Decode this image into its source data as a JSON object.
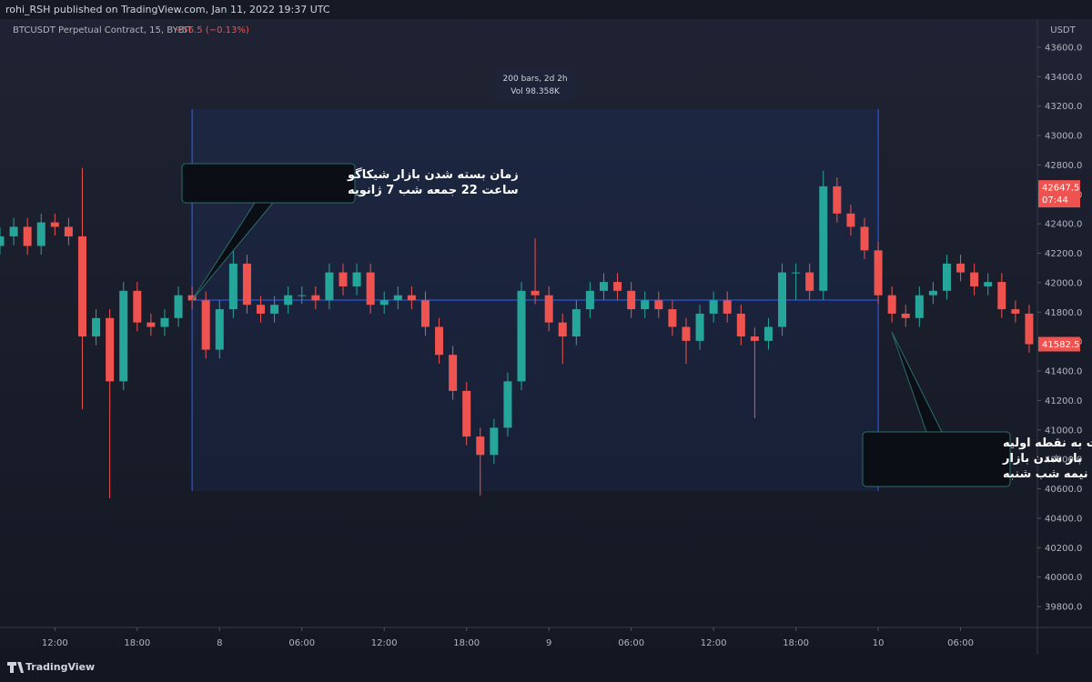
{
  "header": {
    "published": "rohi_RSH published on TradingView.com, Jan 11, 2022 19:37 UTC",
    "symbol": "BTCUSDT Perpetual Contract, 15, BYBIT",
    "change": "−56.5 (−0.13%)",
    "currency": "USDT",
    "brand": "TradingView"
  },
  "chart_data": {
    "type": "candlestick",
    "up_color": "#26a69a",
    "down_color": "#ef5350",
    "x": [
      -4,
      -3,
      -2,
      -1,
      0,
      1,
      2,
      3,
      4,
      5,
      6,
      7,
      8,
      9,
      10,
      11,
      12,
      13,
      14,
      15,
      16,
      17,
      18,
      19,
      20,
      21,
      22,
      23,
      24,
      25,
      26,
      27,
      28,
      29,
      30,
      31,
      32,
      33,
      34,
      35,
      36,
      37,
      38,
      39,
      40,
      41,
      42,
      43,
      44,
      45,
      46,
      47,
      48,
      49,
      50,
      51,
      52,
      53,
      54,
      55,
      56,
      57,
      58,
      59,
      60,
      61,
      62,
      63,
      64,
      65,
      66,
      67,
      68,
      69,
      70,
      71
    ],
    "candles": [
      [
        42250,
        42375,
        42190,
        42315
      ],
      [
        42315,
        42440,
        42255,
        42380
      ],
      [
        42380,
        42440,
        42190,
        42250
      ],
      [
        42250,
        42470,
        42190,
        42410
      ],
      [
        42410,
        42470,
        42320,
        42380
      ],
      [
        42380,
        42440,
        42255,
        42315
      ],
      [
        42315,
        42780,
        41140,
        41635
      ],
      [
        41635,
        41820,
        41575,
        41760
      ],
      [
        41760,
        41820,
        40535,
        41330
      ],
      [
        41330,
        42005,
        41270,
        41945
      ],
      [
        41945,
        42005,
        41670,
        41730
      ],
      [
        41730,
        41790,
        41640,
        41700
      ],
      [
        41700,
        41820,
        41640,
        41760
      ],
      [
        41760,
        41975,
        41700,
        41915
      ],
      [
        41915,
        41975,
        41820,
        41880
      ],
      [
        41880,
        41940,
        41485,
        41545
      ],
      [
        41545,
        41880,
        41485,
        41820
      ],
      [
        41820,
        42240,
        41760,
        42130
      ],
      [
        42130,
        42190,
        41790,
        41850
      ],
      [
        41850,
        41910,
        41730,
        41790
      ],
      [
        41790,
        41910,
        41730,
        41850
      ],
      [
        41850,
        41975,
        41790,
        41915
      ],
      [
        41915,
        41975,
        41855,
        41915
      ],
      [
        41915,
        41975,
        41820,
        41880
      ],
      [
        41880,
        42130,
        41820,
        42070
      ],
      [
        42070,
        42130,
        41915,
        41975
      ],
      [
        41975,
        42130,
        41915,
        42070
      ],
      [
        42070,
        42130,
        41790,
        41850
      ],
      [
        41850,
        41940,
        41790,
        41880
      ],
      [
        41880,
        41975,
        41820,
        41915
      ],
      [
        41915,
        41975,
        41820,
        41880
      ],
      [
        41880,
        41940,
        41640,
        41700
      ],
      [
        41700,
        41760,
        41450,
        41510
      ],
      [
        41510,
        41570,
        41205,
        41265
      ],
      [
        41265,
        41325,
        40895,
        40955
      ],
      [
        40955,
        41015,
        40555,
        40830
      ],
      [
        40830,
        41075,
        40770,
        41015
      ],
      [
        41015,
        41390,
        40955,
        41330
      ],
      [
        41330,
        42005,
        41270,
        41945
      ],
      [
        41945,
        42300,
        41855,
        41915
      ],
      [
        41915,
        41975,
        41670,
        41730
      ],
      [
        41730,
        41790,
        41450,
        41635
      ],
      [
        41635,
        41880,
        41575,
        41820
      ],
      [
        41820,
        42005,
        41760,
        41945
      ],
      [
        41945,
        42065,
        41885,
        42005
      ],
      [
        42005,
        42065,
        41885,
        41945
      ],
      [
        41945,
        42005,
        41760,
        41820
      ],
      [
        41820,
        41940,
        41760,
        41880
      ],
      [
        41880,
        41940,
        41760,
        41820
      ],
      [
        41820,
        41880,
        41640,
        41700
      ],
      [
        41700,
        41760,
        41450,
        41605
      ],
      [
        41605,
        41850,
        41545,
        41790
      ],
      [
        41790,
        41940,
        41730,
        41880
      ],
      [
        41880,
        41940,
        41730,
        41790
      ],
      [
        41790,
        41850,
        41575,
        41635
      ],
      [
        41635,
        41695,
        41080,
        41605
      ],
      [
        41605,
        41760,
        41545,
        41700
      ],
      [
        41700,
        42130,
        41640,
        42070
      ],
      [
        42070,
        42130,
        41885,
        42070
      ],
      [
        42070,
        42130,
        41885,
        41945
      ],
      [
        41945,
        42760,
        41885,
        42655
      ],
      [
        42655,
        42715,
        42410,
        42470
      ],
      [
        42470,
        42530,
        42320,
        42380
      ],
      [
        42380,
        42440,
        42160,
        42220
      ],
      [
        42220,
        42280,
        41855,
        41915
      ],
      [
        41915,
        41975,
        41730,
        41790
      ],
      [
        41790,
        41850,
        41700,
        41760
      ],
      [
        41760,
        41975,
        41700,
        41915
      ],
      [
        41915,
        42005,
        41855,
        41945
      ],
      [
        41945,
        42190,
        41885,
        42130
      ],
      [
        42130,
        42190,
        42010,
        42070
      ],
      [
        42070,
        42130,
        41915,
        41975
      ],
      [
        41975,
        42065,
        41915,
        42005
      ],
      [
        42005,
        42065,
        41760,
        41820
      ],
      [
        41820,
        41880,
        41730,
        41790
      ],
      [
        41790,
        41850,
        41525,
        41582.5
      ]
    ],
    "xlim": [
      -4,
      71.6
    ],
    "ylim": [
      39658,
      43785
    ],
    "xticks": [
      {
        "value": 0,
        "label": "12:00"
      },
      {
        "value": 6,
        "label": "18:00"
      },
      {
        "value": 12,
        "label": "8"
      },
      {
        "value": 18,
        "label": "06:00"
      },
      {
        "value": 24,
        "label": "12:00"
      },
      {
        "value": 30,
        "label": "18:00"
      },
      {
        "value": 36,
        "label": "9"
      },
      {
        "value": 42,
        "label": "06:00"
      },
      {
        "value": 48,
        "label": "12:00"
      },
      {
        "value": 54,
        "label": "18:00"
      },
      {
        "value": 60,
        "label": "10"
      },
      {
        "value": 66,
        "label": "06:00"
      }
    ],
    "yticks": [
      {
        "value": 39800,
        "label": "39800.0"
      },
      {
        "value": 40000,
        "label": "40000.0"
      },
      {
        "value": 40200,
        "label": "40200.0"
      },
      {
        "value": 40400,
        "label": "40400.0"
      },
      {
        "value": 40600,
        "label": "40600.0"
      },
      {
        "value": 40800,
        "label": "40800.0"
      },
      {
        "value": 41000,
        "label": "41000.0"
      },
      {
        "value": 41200,
        "label": "41200.0"
      },
      {
        "value": 41400,
        "label": "41400.0"
      },
      {
        "value": 41600,
        "label": "41600.0"
      },
      {
        "value": 41800,
        "label": "41800.0"
      },
      {
        "value": 42000,
        "label": "42000.0"
      },
      {
        "value": 42200,
        "label": "42200.0"
      },
      {
        "value": 42400,
        "label": "42400.0"
      },
      {
        "value": 42600,
        "label": "42600.0"
      },
      {
        "value": 42800,
        "label": "42800.0"
      },
      {
        "value": 43000,
        "label": "43000.0"
      },
      {
        "value": 43200,
        "label": "43200.0"
      },
      {
        "value": 43400,
        "label": "43400.0"
      },
      {
        "value": 43600,
        "label": "43600.0"
      }
    ],
    "price_tags": [
      {
        "price": 42647.5,
        "time": "07:44"
      },
      {
        "price": 41582.5
      }
    ],
    "measure": {
      "x_range": [
        10,
        60
      ],
      "price_range": [
        40585,
        43180
      ],
      "level": 41882,
      "bars": "200 bars, 2d 2h",
      "volume": "Vol 98.358K"
    },
    "annotations": [
      {
        "lines": [
          "زمان بسته شدن بازار شیکاگو",
          "ساعت 22 جمعه شب 7 ژانویه"
        ]
      },
      {
        "lines": [
          "برگشتن قیمت به نقطه اولیه",
          "باز شدن بازار",
          "نیمه شب شنبه"
        ]
      }
    ]
  }
}
